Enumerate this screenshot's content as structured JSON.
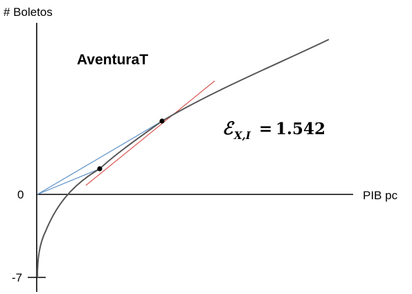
{
  "labels": {
    "y_axis": "# Boletos",
    "x_axis": "PIB pc",
    "origin": "0",
    "intercept": "-7",
    "title": "AventuraT"
  },
  "elasticity": {
    "symbol": "ℰ",
    "subscript": "X,I",
    "equals": "=",
    "value": "1.542"
  },
  "colors": {
    "curve": "#555555",
    "tangent": "#d9534f",
    "chords": "#5b8fc7",
    "axes": "#000000",
    "points": "#000000"
  }
}
